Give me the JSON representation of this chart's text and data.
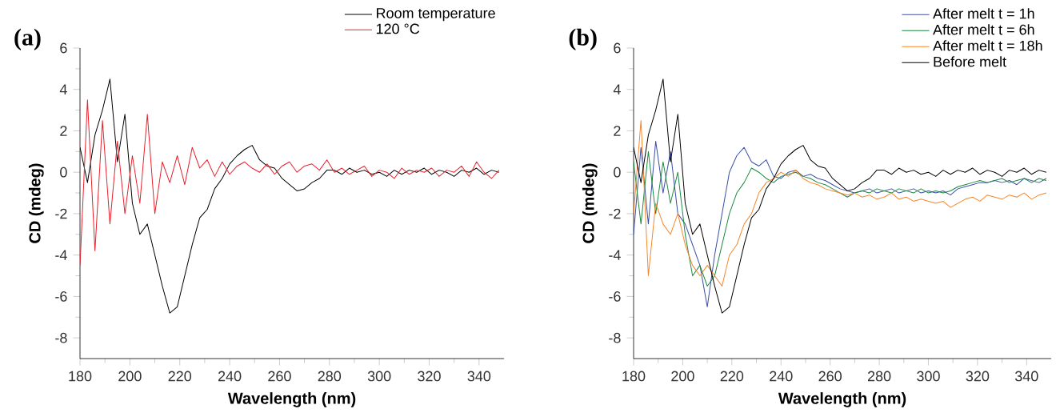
{
  "chart_data": [
    {
      "type": "line",
      "title": "(a)",
      "xlabel": "Wavelength (nm)",
      "ylabel": "CD (mdeg)",
      "legend": "top right",
      "xlim": [
        180,
        350
      ],
      "ylim": [
        -9,
        6
      ],
      "xticks": [
        180,
        200,
        220,
        240,
        260,
        280,
        300,
        320,
        340
      ],
      "yticks": [
        -8,
        -6,
        -4,
        -2,
        0,
        2,
        4,
        6
      ],
      "x": [
        180,
        183,
        186,
        189,
        192,
        195,
        198,
        201,
        204,
        207,
        210,
        213,
        216,
        219,
        222,
        225,
        228,
        231,
        234,
        237,
        240,
        243,
        246,
        249,
        252,
        255,
        258,
        261,
        264,
        267,
        270,
        273,
        276,
        279,
        282,
        285,
        288,
        291,
        294,
        297,
        300,
        303,
        306,
        309,
        312,
        315,
        318,
        321,
        324,
        327,
        330,
        333,
        336,
        339,
        342,
        345,
        348
      ],
      "series": [
        {
          "name": "Room temperature",
          "color": "#000000",
          "values": [
            1.2,
            -0.5,
            1.8,
            3.0,
            4.5,
            0.5,
            2.8,
            -1.5,
            -3.0,
            -2.5,
            -4.0,
            -5.5,
            -6.8,
            -6.5,
            -5.0,
            -3.5,
            -2.2,
            -1.8,
            -0.8,
            -0.3,
            0.4,
            0.8,
            1.1,
            1.3,
            0.6,
            0.3,
            0.2,
            -0.3,
            -0.6,
            -0.9,
            -0.8,
            -0.5,
            -0.3,
            0.1,
            0.1,
            -0.1,
            0.2,
            0.0,
            0.1,
            -0.1,
            0.0,
            -0.2,
            0.1,
            -0.1,
            0.1,
            0.0,
            0.2,
            -0.1,
            0.1,
            0.0,
            -0.2,
            0.1,
            0.0,
            0.2,
            -0.1,
            0.1,
            0.0
          ]
        },
        {
          "name": "120 °C",
          "color": "#e8202a",
          "values": [
            -4.5,
            3.5,
            -3.8,
            2.5,
            -2.5,
            1.5,
            -2.0,
            0.8,
            -1.5,
            2.8,
            -2.0,
            0.5,
            -0.5,
            0.8,
            -0.6,
            1.2,
            0.2,
            0.6,
            -0.2,
            0.5,
            -0.1,
            0.3,
            0.5,
            0.2,
            0.0,
            0.4,
            -0.1,
            0.3,
            0.5,
            0.0,
            0.3,
            0.4,
            0.1,
            0.6,
            0.0,
            0.2,
            -0.1,
            0.1,
            0.3,
            -0.2,
            0.1,
            0.0,
            -0.3,
            0.2,
            -0.1,
            0.1,
            0.0,
            0.2,
            -0.2,
            0.1,
            0.0,
            0.3,
            -0.2,
            0.5,
            0.0,
            -0.3,
            0.1
          ]
        }
      ]
    },
    {
      "type": "line",
      "title": "(b)",
      "xlabel": "Wavelength (nm)",
      "ylabel": "CD (mdeg)",
      "legend": "top right",
      "xlim": [
        180,
        350
      ],
      "ylim": [
        -9,
        6
      ],
      "xticks": [
        180,
        200,
        220,
        240,
        260,
        280,
        300,
        320,
        340
      ],
      "yticks": [
        -8,
        -6,
        -4,
        -2,
        0,
        2,
        4,
        6
      ],
      "x": [
        180,
        183,
        186,
        189,
        192,
        195,
        198,
        201,
        204,
        207,
        210,
        213,
        216,
        219,
        222,
        225,
        228,
        231,
        234,
        237,
        240,
        243,
        246,
        249,
        252,
        255,
        258,
        261,
        264,
        267,
        270,
        273,
        276,
        279,
        282,
        285,
        288,
        291,
        294,
        297,
        300,
        303,
        306,
        309,
        312,
        315,
        318,
        321,
        324,
        327,
        330,
        333,
        336,
        339,
        342,
        345,
        348
      ],
      "series": [
        {
          "name": "After melt t = 1h",
          "color": "#3b4fa8",
          "values": [
            -3.0,
            1.2,
            -2.5,
            1.5,
            -1.0,
            1.0,
            -2.0,
            -2.5,
            -3.5,
            -4.5,
            -6.5,
            -4.0,
            -2.0,
            0.0,
            0.8,
            1.2,
            0.5,
            0.3,
            0.6,
            -0.2,
            -0.3,
            0.0,
            0.1,
            -0.2,
            -0.1,
            -0.3,
            -0.4,
            -0.6,
            -0.8,
            -0.9,
            -1.0,
            -0.9,
            -0.8,
            -1.0,
            -0.9,
            -0.8,
            -1.0,
            -0.9,
            -0.8,
            -1.0,
            -0.9,
            -1.0,
            -0.9,
            -1.1,
            -0.8,
            -0.7,
            -0.6,
            -0.5,
            -0.5,
            -0.4,
            -0.5,
            -0.4,
            -0.6,
            -0.3,
            -0.4,
            -0.5,
            -0.3
          ]
        },
        {
          "name": "After melt t = 6h",
          "color": "#1a8a3e",
          "values": [
            0.5,
            -2.5,
            1.0,
            -2.0,
            0.5,
            -1.5,
            0.0,
            -3.0,
            -5.0,
            -4.5,
            -5.5,
            -5.0,
            -3.5,
            -2.0,
            -1.0,
            -0.5,
            0.2,
            0.0,
            -0.3,
            -0.5,
            -0.2,
            -0.1,
            0.0,
            -0.2,
            -0.3,
            -0.5,
            -0.6,
            -0.8,
            -1.0,
            -1.2,
            -1.0,
            -0.9,
            -1.0,
            -0.8,
            -0.9,
            -1.0,
            -0.8,
            -0.9,
            -1.0,
            -0.8,
            -1.0,
            -0.9,
            -1.0,
            -0.9,
            -0.7,
            -0.6,
            -0.5,
            -0.4,
            -0.5,
            -0.4,
            -0.3,
            -0.5,
            -0.4,
            -0.3,
            -0.5,
            -0.3,
            -0.4
          ]
        },
        {
          "name": "After melt t = 18h",
          "color": "#f7862a",
          "values": [
            -2.0,
            2.5,
            -5.0,
            -1.5,
            -2.5,
            -3.0,
            -2.0,
            -3.5,
            -4.5,
            -5.0,
            -4.5,
            -5.0,
            -5.5,
            -4.0,
            -3.5,
            -2.5,
            -2.0,
            -1.0,
            -0.5,
            -0.3,
            0.0,
            -0.2,
            0.1,
            -0.3,
            -0.5,
            -0.6,
            -0.8,
            -0.9,
            -1.0,
            -1.1,
            -1.0,
            -1.2,
            -1.1,
            -1.3,
            -1.2,
            -1.0,
            -1.3,
            -1.2,
            -1.4,
            -1.3,
            -1.4,
            -1.5,
            -1.4,
            -1.7,
            -1.5,
            -1.3,
            -1.2,
            -1.4,
            -1.1,
            -1.2,
            -1.3,
            -1.1,
            -1.2,
            -1.0,
            -1.3,
            -1.1,
            -1.0
          ]
        },
        {
          "name": "Before melt",
          "color": "#000000",
          "values": [
            1.2,
            -0.5,
            1.8,
            3.0,
            4.5,
            0.5,
            2.8,
            -1.5,
            -3.0,
            -2.5,
            -4.0,
            -5.5,
            -6.8,
            -6.5,
            -5.0,
            -3.5,
            -2.2,
            -1.8,
            -0.8,
            -0.3,
            0.4,
            0.8,
            1.1,
            1.3,
            0.6,
            0.3,
            0.2,
            -0.3,
            -0.6,
            -0.9,
            -0.8,
            -0.5,
            -0.3,
            0.1,
            0.1,
            -0.1,
            0.2,
            0.0,
            0.1,
            -0.1,
            0.0,
            -0.2,
            0.1,
            -0.1,
            0.1,
            0.0,
            0.2,
            -0.1,
            0.1,
            0.0,
            -0.2,
            0.1,
            0.0,
            0.2,
            -0.1,
            0.1,
            0.0
          ]
        }
      ]
    }
  ]
}
